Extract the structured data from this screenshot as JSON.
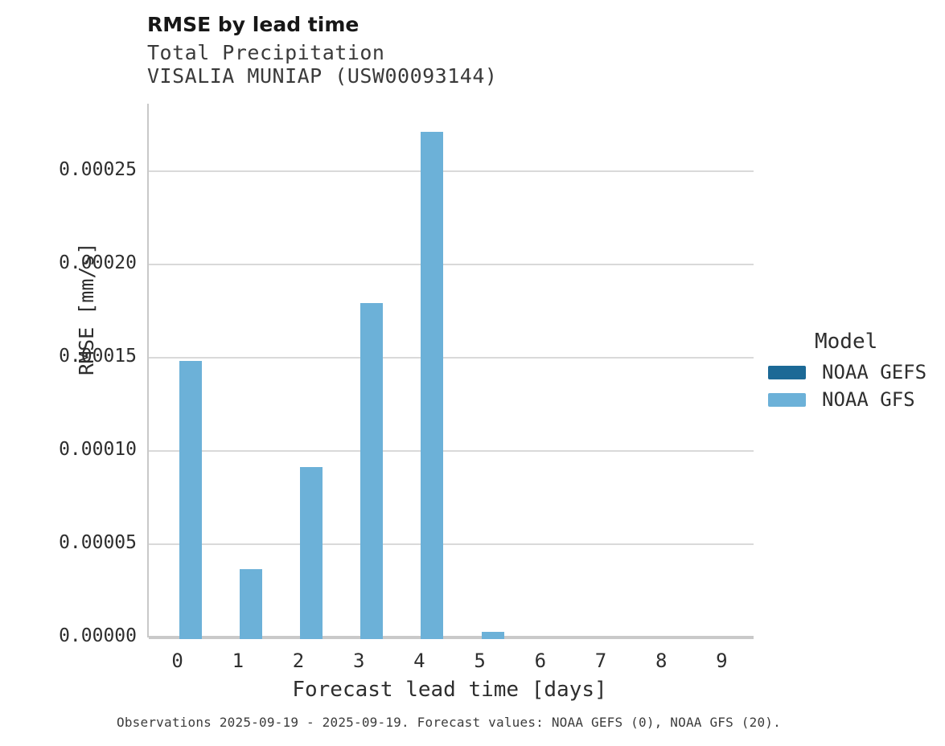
{
  "header": {
    "title": "RMSE by lead time",
    "subtitle1": "Total Precipitation",
    "subtitle2": "VISALIA MUNIAP (USW00093144)"
  },
  "caption": "Observations 2025-09-19 - 2025-09-19. Forecast values: NOAA GEFS (0), NOAA GFS (20).",
  "legend": {
    "title": "Model",
    "entries": [
      {
        "label": "NOAA GEFS",
        "color": "#1c6996"
      },
      {
        "label": "NOAA GFS",
        "color": "#6cb1d8"
      }
    ]
  },
  "colors": {
    "gefs": "#1c6996",
    "gfs": "#6cb1d8",
    "gridline": "#d9d9d9",
    "spine": "#c9c9c9"
  },
  "chart_data": {
    "type": "bar",
    "title": "RMSE by lead time",
    "subtitle": [
      "Total Precipitation",
      "VISALIA MUNIAP (USW00093144)"
    ],
    "categories": [
      "0",
      "1",
      "2",
      "3",
      "4",
      "5",
      "6",
      "7",
      "8",
      "9"
    ],
    "series": [
      {
        "name": "NOAA GEFS",
        "color": "#1c6996",
        "values": [
          0,
          0,
          0,
          0,
          0,
          0,
          0,
          0,
          0,
          0
        ]
      },
      {
        "name": "NOAA GFS",
        "color": "#6cb1d8",
        "values": [
          0.000148,
          3.65e-05,
          9.15e-05,
          0.000179,
          0.000271,
          3e-06,
          0,
          0,
          0,
          0
        ]
      }
    ],
    "xlabel": "Forecast lead time [days]",
    "ylabel": "RMSE [mm/s]",
    "ylim": [
      0,
      0.000286
    ],
    "yticks": [
      0,
      5e-05,
      0.0001,
      0.00015,
      0.0002,
      0.00025
    ],
    "ytick_labels": [
      "0.00000",
      "0.00005",
      "0.00010",
      "0.00015",
      "0.00020",
      "0.00025"
    ],
    "grid": true,
    "legend_title": "Model",
    "legend_position": "right"
  }
}
